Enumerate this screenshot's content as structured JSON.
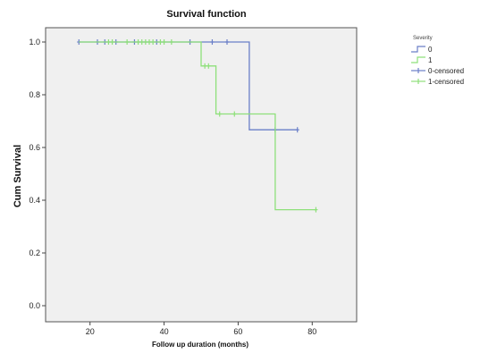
{
  "chart_data": {
    "type": "line",
    "subtype": "kaplan-meier step",
    "title": "Survival function",
    "xlabel": "Follow up duration (months)",
    "ylabel": "Cum Survival",
    "xlim": [
      8,
      92
    ],
    "ylim": [
      0,
      1.0
    ],
    "x_ticks": [
      20,
      40,
      60,
      80
    ],
    "y_ticks": [
      0.0,
      0.2,
      0.4,
      0.6,
      0.8,
      1.0
    ],
    "y_tick_labels": [
      "0.0",
      "0.2",
      "0.4",
      "0.6",
      "0.8",
      "1.0"
    ],
    "grid": false,
    "plot_background": "#f0f0f0",
    "legend": {
      "title": "Severity",
      "position": "top-right",
      "entries": [
        "0",
        "1",
        "0-censored",
        "1-censored"
      ]
    },
    "series": [
      {
        "name": "0",
        "color": "#6a7fc8",
        "steps": [
          [
            17,
            1.0
          ],
          [
            63,
            1.0
          ],
          [
            63,
            0.667
          ],
          [
            76,
            0.667
          ]
        ],
        "censored": [
          [
            17,
            1.0
          ],
          [
            22,
            1.0
          ],
          [
            24,
            1.0
          ],
          [
            27,
            1.0
          ],
          [
            32,
            1.0
          ],
          [
            38,
            1.0
          ],
          [
            47,
            1.0
          ],
          [
            53,
            1.0
          ],
          [
            57,
            1.0
          ],
          [
            70,
            0.667
          ],
          [
            76,
            0.667
          ]
        ]
      },
      {
        "name": "1",
        "color": "#8ee07a",
        "steps": [
          [
            17,
            1.0
          ],
          [
            50,
            1.0
          ],
          [
            50,
            0.909
          ],
          [
            54,
            0.909
          ],
          [
            54,
            0.727
          ],
          [
            70,
            0.727
          ],
          [
            70,
            0.364
          ],
          [
            81,
            0.364
          ]
        ],
        "censored": [
          [
            25,
            1.0
          ],
          [
            26,
            1.0
          ],
          [
            30,
            1.0
          ],
          [
            33,
            1.0
          ],
          [
            34,
            1.0
          ],
          [
            35,
            1.0
          ],
          [
            36,
            1.0
          ],
          [
            37,
            1.0
          ],
          [
            39,
            1.0
          ],
          [
            40,
            1.0
          ],
          [
            42,
            1.0
          ],
          [
            51,
            0.909
          ],
          [
            52,
            0.909
          ],
          [
            55,
            0.727
          ],
          [
            59,
            0.727
          ],
          [
            81,
            0.364
          ]
        ]
      }
    ]
  }
}
